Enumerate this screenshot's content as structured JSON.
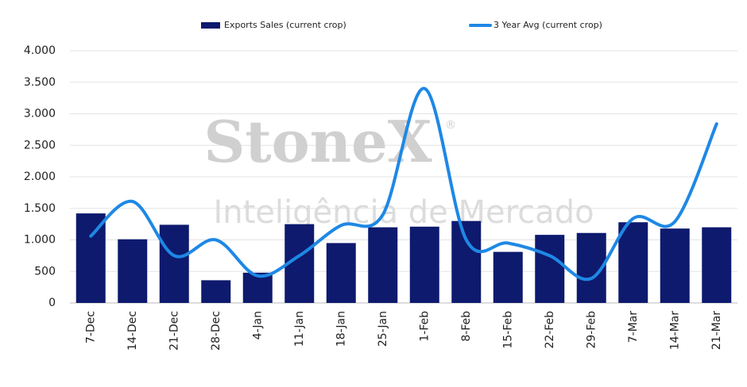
{
  "chart_data": {
    "type": "bar",
    "watermark": {
      "brand": "StoneX",
      "mark": "®",
      "tagline": "Inteligência de Mercado"
    },
    "categories": [
      "7-Dec",
      "14-Dec",
      "21-Dec",
      "28-Dec",
      "4-Jan",
      "11-Jan",
      "18-Jan",
      "25-Jan",
      "1-Feb",
      "8-Feb",
      "15-Feb",
      "22-Feb",
      "29-Feb",
      "7-Mar",
      "14-Mar",
      "21-Mar"
    ],
    "series": [
      {
        "name": "Exports Sales (current crop)",
        "type": "bar",
        "color": "#0e1a6e",
        "values": [
          1420,
          1010,
          1240,
          360,
          480,
          1250,
          950,
          1200,
          1210,
          1300,
          810,
          1080,
          1110,
          1280,
          1180,
          1200
        ]
      },
      {
        "name": "3 Year Avg (current crop)",
        "type": "line",
        "color": "#1e88e5",
        "values": [
          1060,
          1610,
          750,
          1000,
          430,
          750,
          1230,
          1400,
          3400,
          1000,
          950,
          750,
          390,
          1340,
          1290,
          2840
        ]
      }
    ],
    "ylim": [
      0,
      4000
    ],
    "yticks": [
      0,
      500,
      {
        "value": 1000,
        "label": "1.000"
      },
      {
        "value": 1500,
        "label": "1.500"
      },
      {
        "value": 2000,
        "label": "2.000"
      },
      {
        "value": 2500,
        "label": "2.500"
      },
      {
        "value": 3000,
        "label": "3.000"
      },
      {
        "value": 3500,
        "label": "3.500"
      },
      {
        "value": 4000,
        "label": "4.000"
      }
    ],
    "grid": true,
    "legend": "top"
  }
}
